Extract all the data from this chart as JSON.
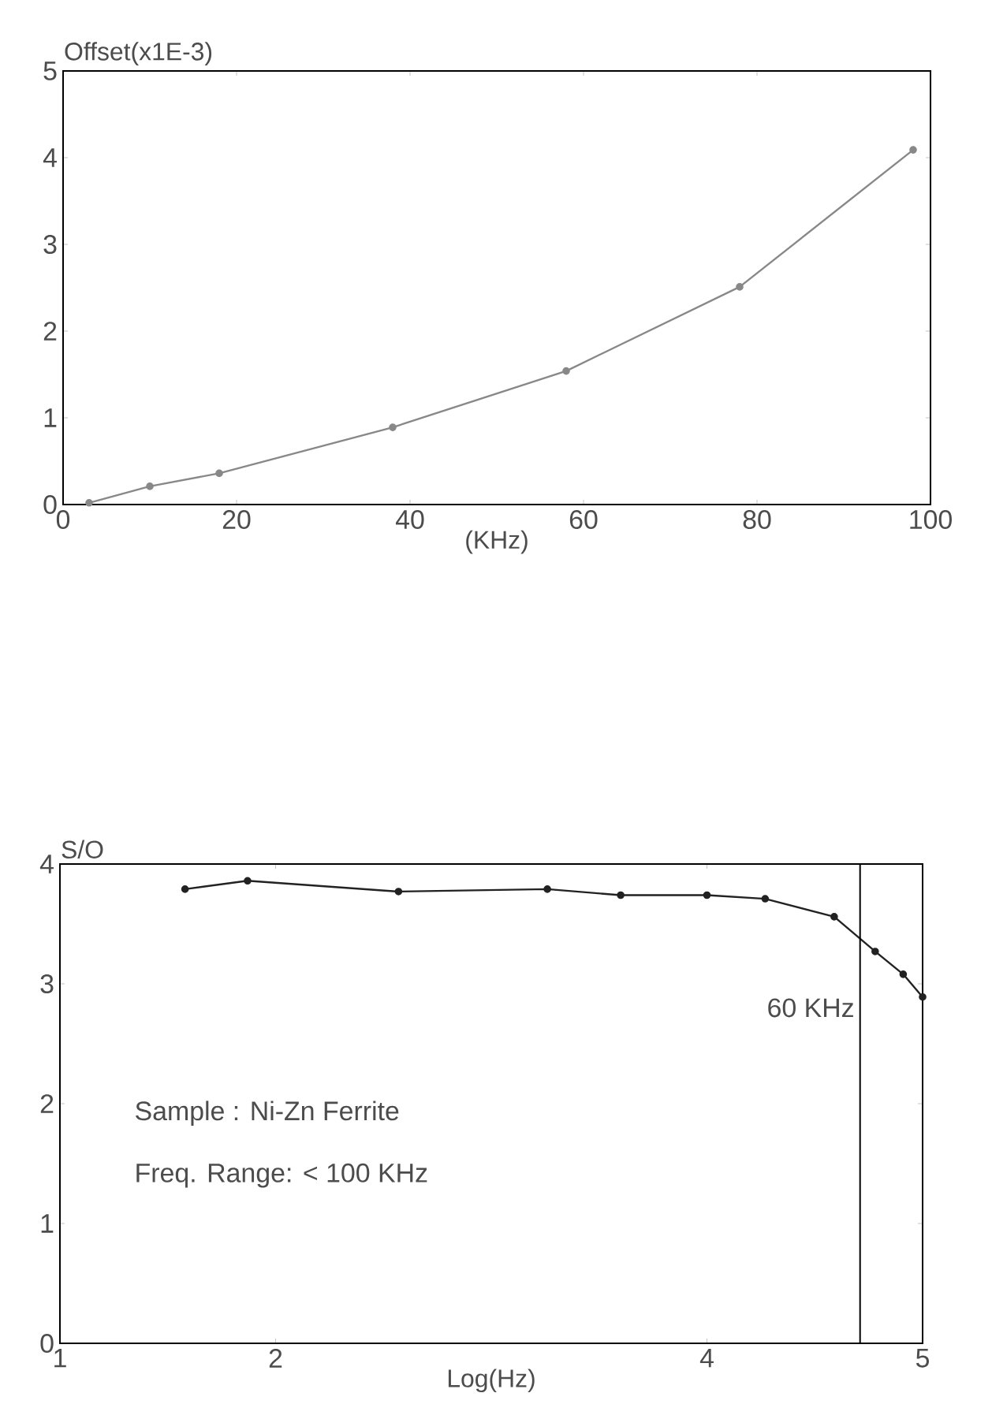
{
  "chart_data": [
    {
      "type": "line",
      "ylabel": "Offset(x1E-3)",
      "xlabel": "(KHz)",
      "x": [
        3,
        10,
        18,
        38,
        58,
        78,
        98
      ],
      "values": [
        0.02,
        0.21,
        0.36,
        0.89,
        1.54,
        2.51,
        4.09
      ],
      "color": "#888888",
      "xlim": [
        0,
        100
      ],
      "ylim": [
        0,
        5
      ],
      "xticks": [
        0,
        20,
        40,
        60,
        80,
        100
      ],
      "yticks": [
        0,
        1,
        2,
        3,
        4,
        5
      ],
      "marker": "circle",
      "line_style": "solid"
    },
    {
      "type": "line",
      "ylabel": "S/O",
      "xlabel": "Log(Hz)",
      "x": [
        1.58,
        1.87,
        2.57,
        3.26,
        3.6,
        4.0,
        4.27,
        4.59,
        4.78,
        4.91,
        5.0
      ],
      "values": [
        3.79,
        3.86,
        3.77,
        3.79,
        3.74,
        3.74,
        3.71,
        3.56,
        3.27,
        3.08,
        2.89
      ],
      "color": "#222222",
      "xlim": [
        1,
        5
      ],
      "ylim": [
        0,
        4
      ],
      "xticks": [
        1,
        2,
        4,
        5
      ],
      "yticks": [
        0,
        1,
        2,
        3,
        4
      ],
      "marker": "circle",
      "line_style": "solid",
      "ref_lines": [
        {
          "axis": "x",
          "value": 4.71,
          "label": "60 KHz"
        }
      ],
      "annotations": [
        "Sample : Ni-Zn Ferrite",
        "Freq. Range: < 100 KHz"
      ]
    }
  ]
}
